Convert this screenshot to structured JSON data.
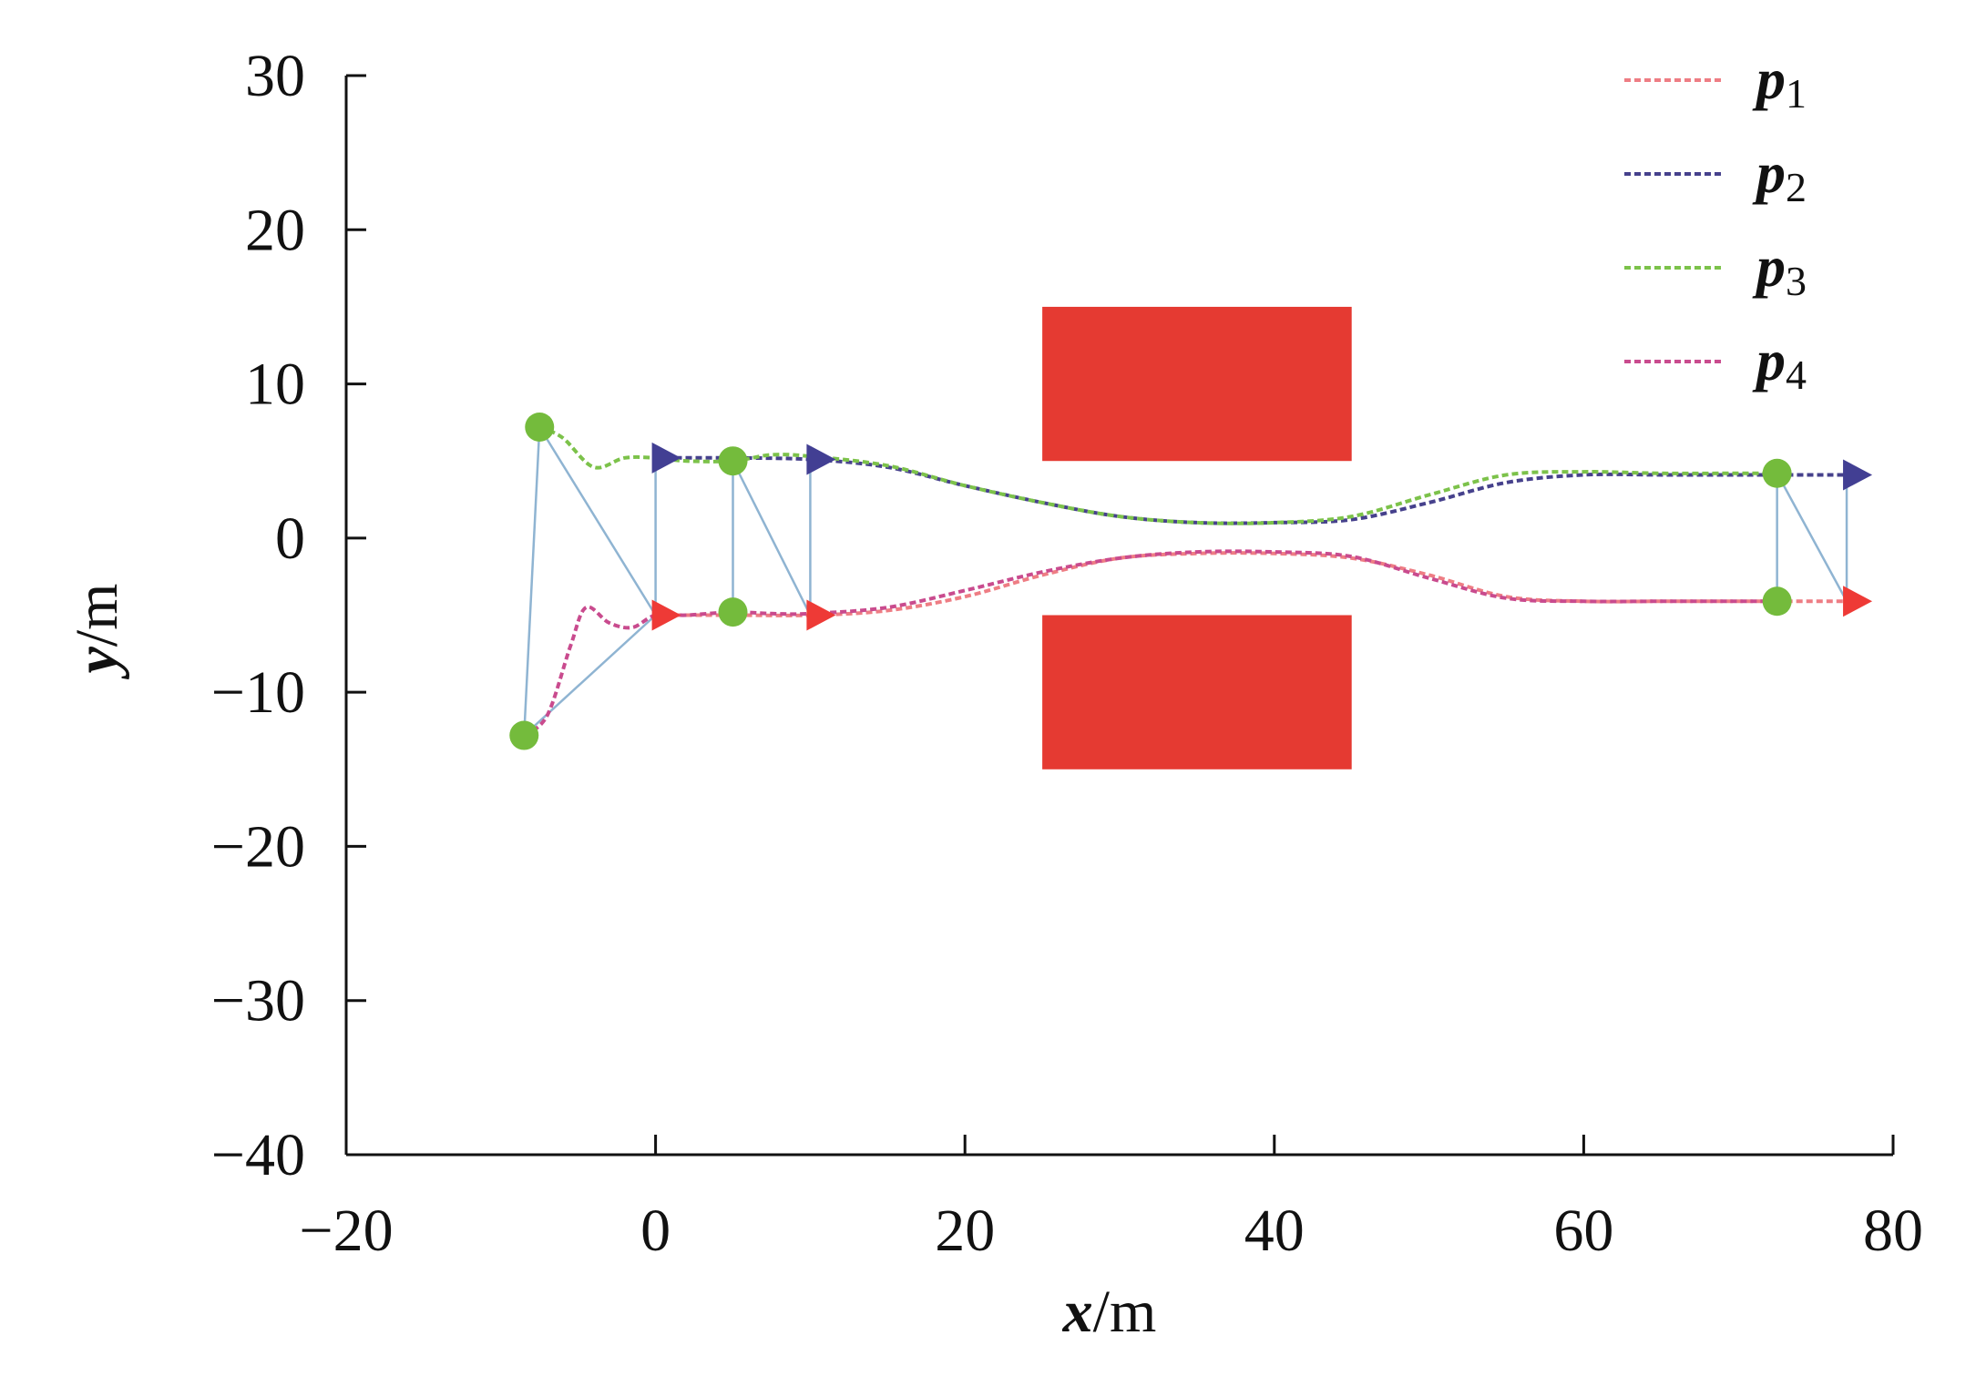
{
  "chart_data": {
    "type": "line",
    "title": "",
    "xlabel_var": "x",
    "xlabel_unit": "/m",
    "ylabel_var": "y",
    "ylabel_unit": "/m",
    "xlim": [
      -20,
      80
    ],
    "ylim": [
      -40,
      30
    ],
    "xticks": [
      -20,
      0,
      20,
      40,
      60,
      80
    ],
    "yticks": [
      -40,
      -30,
      -20,
      -10,
      0,
      10,
      20,
      30
    ],
    "xtick_labels": [
      "−20",
      "0",
      "20",
      "40",
      "60",
      "80"
    ],
    "ytick_labels": [
      "−40",
      "−30",
      "−20",
      "−10",
      "0",
      "10",
      "20",
      "30"
    ],
    "grid": false,
    "legend_position": "top-right",
    "series": [
      {
        "name": "p",
        "sub": "1",
        "color": "#ee7d84",
        "x": [
          0,
          5,
          10,
          15,
          20,
          25,
          30,
          35,
          40,
          45,
          50,
          55,
          60,
          65,
          70,
          72.5,
          77
        ],
        "y": [
          -5,
          -5,
          -5,
          -4.7,
          -3.8,
          -2.4,
          -1.3,
          -1,
          -1,
          -1.3,
          -2.4,
          -3.8,
          -4.1,
          -4.1,
          -4.1,
          -4.1,
          -4.1
        ]
      },
      {
        "name": "p",
        "sub": "2",
        "color": "#46418c",
        "x": [
          0,
          5,
          10,
          15,
          20,
          25,
          30,
          35,
          40,
          45,
          50,
          55,
          60,
          65,
          70,
          72.5,
          77
        ],
        "y": [
          5.2,
          5.2,
          5.1,
          4.6,
          3.4,
          2.3,
          1.4,
          1,
          1,
          1.2,
          2.3,
          3.6,
          4.1,
          4.1,
          4.1,
          4.1,
          4.1
        ]
      },
      {
        "name": "p",
        "sub": "3",
        "color": "#7cc24a",
        "x": [
          -7.5,
          -6,
          -4,
          -2,
          0,
          2,
          5,
          7.5,
          10,
          15,
          20,
          25,
          30,
          35,
          40,
          45,
          50,
          55,
          60,
          65,
          70,
          72.5
        ],
        "y": [
          7.2,
          6.5,
          4.6,
          5.2,
          5.2,
          5,
          5,
          5.4,
          5.3,
          4.7,
          3.4,
          2.3,
          1.4,
          1,
          1,
          1.4,
          2.8,
          4.1,
          4.3,
          4.2,
          4.2,
          4.2
        ]
      },
      {
        "name": "p",
        "sub": "4",
        "color": "#c94b8e",
        "x": [
          -8.5,
          -7,
          -5.5,
          -4.5,
          -3,
          -1.5,
          0,
          2,
          5,
          7.5,
          10,
          15,
          20,
          25,
          30,
          35,
          40,
          45,
          50,
          55,
          60,
          65,
          70,
          72.5
        ],
        "y": [
          -12.8,
          -11.5,
          -7,
          -4.5,
          -5.5,
          -5.8,
          -5,
          -5,
          -4.8,
          -4.9,
          -4.9,
          -4.5,
          -3.4,
          -2.2,
          -1.3,
          -0.9,
          -0.9,
          -1.2,
          -2.6,
          -3.9,
          -4.1,
          -4.1,
          -4.1,
          -4.1
        ]
      }
    ],
    "obstacles": [
      {
        "x0": 25,
        "x1": 45,
        "y0": 5,
        "y1": 15,
        "color": "#e53a32"
      },
      {
        "x0": 25,
        "x1": 45,
        "y0": -15,
        "y1": -5,
        "color": "#e53a32"
      }
    ],
    "formation_links": [
      {
        "x1": -7.5,
        "y1": 7.2,
        "x2": 0,
        "y2": -5
      },
      {
        "x1": -7.5,
        "y1": 7.2,
        "x2": -8.5,
        "y2": -12.8
      },
      {
        "x1": -8.5,
        "y1": -12.8,
        "x2": 0,
        "y2": -5
      },
      {
        "x1": 0,
        "y1": 5.2,
        "x2": 0,
        "y2": -5
      },
      {
        "x1": 5,
        "y1": 5,
        "x2": 5,
        "y2": -4.8
      },
      {
        "x1": 5,
        "y1": 5,
        "x2": 10,
        "y2": -5
      },
      {
        "x1": 10,
        "y1": 5.1,
        "x2": 10,
        "y2": -5
      },
      {
        "x1": 72.5,
        "y1": 4.2,
        "x2": 72.5,
        "y2": -4.1
      },
      {
        "x1": 72.5,
        "y1": 4.2,
        "x2": 77,
        "y2": -4.1
      },
      {
        "x1": 77,
        "y1": 4.1,
        "x2": 77,
        "y2": -4.1
      }
    ],
    "follower_markers": {
      "color": "#74bb3c",
      "points": [
        {
          "x": -7.5,
          "y": 7.2
        },
        {
          "x": -8.5,
          "y": -12.8
        },
        {
          "x": 5,
          "y": 5
        },
        {
          "x": 5,
          "y": -4.8
        },
        {
          "x": 72.5,
          "y": 4.2
        },
        {
          "x": 72.5,
          "y": -4.1
        }
      ]
    },
    "leader_markers": [
      {
        "x": 0,
        "y": 5.2,
        "color": "#423f93"
      },
      {
        "x": 10,
        "y": 5.1,
        "color": "#423f93"
      },
      {
        "x": 77,
        "y": 4.1,
        "color": "#423f93"
      },
      {
        "x": 0,
        "y": -5,
        "color": "#ee3a36"
      },
      {
        "x": 10,
        "y": -5,
        "color": "#ee3a36"
      },
      {
        "x": 77,
        "y": -4.1,
        "color": "#ee3a36"
      }
    ]
  }
}
